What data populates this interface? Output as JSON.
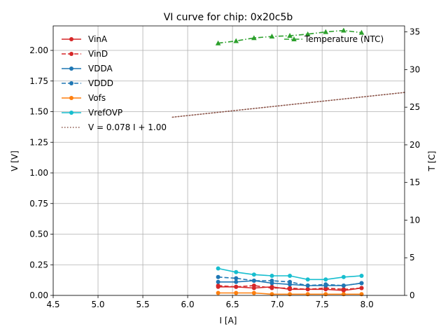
{
  "chart_data": {
    "type": "line",
    "title": "VI curve for chip: 0x20c5b",
    "xlabel": "I [A]",
    "ylabel": "V [V]",
    "y2label": "T [C]",
    "xlim": [
      4.5,
      8.42
    ],
    "ylim": [
      0,
      2.2
    ],
    "y2lim": [
      0,
      35.8
    ],
    "xticks": [
      "4.5",
      "5.0",
      "5.5",
      "6.0",
      "6.5",
      "7.0",
      "7.5",
      "8.0"
    ],
    "yticks": [
      "0.00",
      "0.25",
      "0.50",
      "0.75",
      "1.00",
      "1.25",
      "1.50",
      "1.75",
      "2.00"
    ],
    "y2ticks": [
      "0",
      "5",
      "10",
      "15",
      "20",
      "25",
      "30",
      "35"
    ],
    "grid": true,
    "legend_position": "upper-left",
    "x": [
      6.34,
      6.54,
      6.74,
      6.94,
      7.14,
      7.34,
      7.54,
      7.74,
      7.94
    ],
    "series": [
      {
        "name": "VinA",
        "color": "#d62728",
        "dash": "solid",
        "marker": "circle",
        "axis": "left",
        "values": [
          0.07,
          0.07,
          0.06,
          0.07,
          0.05,
          0.05,
          0.05,
          0.04,
          0.06
        ]
      },
      {
        "name": "VinD",
        "color": "#d62728",
        "dash": "dashed",
        "marker": "circle",
        "axis": "left",
        "values": [
          0.08,
          0.07,
          0.08,
          0.06,
          0.06,
          0.05,
          0.06,
          0.05,
          0.06
        ]
      },
      {
        "name": "VDDA",
        "color": "#1f77b4",
        "dash": "solid",
        "marker": "circle",
        "axis": "left",
        "values": [
          0.11,
          0.11,
          0.12,
          0.1,
          0.09,
          0.08,
          0.08,
          0.08,
          0.1
        ]
      },
      {
        "name": "VDDD",
        "color": "#1f77b4",
        "dash": "dashed",
        "marker": "circle",
        "axis": "left",
        "values": [
          0.15,
          0.14,
          0.12,
          0.12,
          0.11,
          0.08,
          0.09,
          0.08,
          0.1
        ]
      },
      {
        "name": "Vofs",
        "color": "#ff7f0e",
        "dash": "solid",
        "marker": "circle",
        "axis": "left",
        "values": [
          0.02,
          0.02,
          0.02,
          0.01,
          0.01,
          0.01,
          0.01,
          0.01,
          0.01
        ]
      },
      {
        "name": "VrefOVP",
        "color": "#17becf",
        "dash": "solid",
        "marker": "circle",
        "axis": "left",
        "values": [
          0.22,
          0.19,
          0.17,
          0.16,
          0.16,
          0.13,
          0.13,
          0.15,
          0.16
        ]
      },
      {
        "name": "Temperature (NTC)",
        "color": "#2ca02c",
        "dash": "dashdot",
        "marker": "triangle",
        "axis": "right",
        "values": [
          33.5,
          33.8,
          34.2,
          34.4,
          34.5,
          34.7,
          35.0,
          35.2,
          34.9
        ]
      }
    ],
    "fit": {
      "name": "V = 0.078 I + 1.00",
      "color": "#8c564b",
      "dash": "dotted",
      "slope": 0.078,
      "intercept": 1.0,
      "x_range": [
        5.83,
        8.42
      ]
    }
  }
}
